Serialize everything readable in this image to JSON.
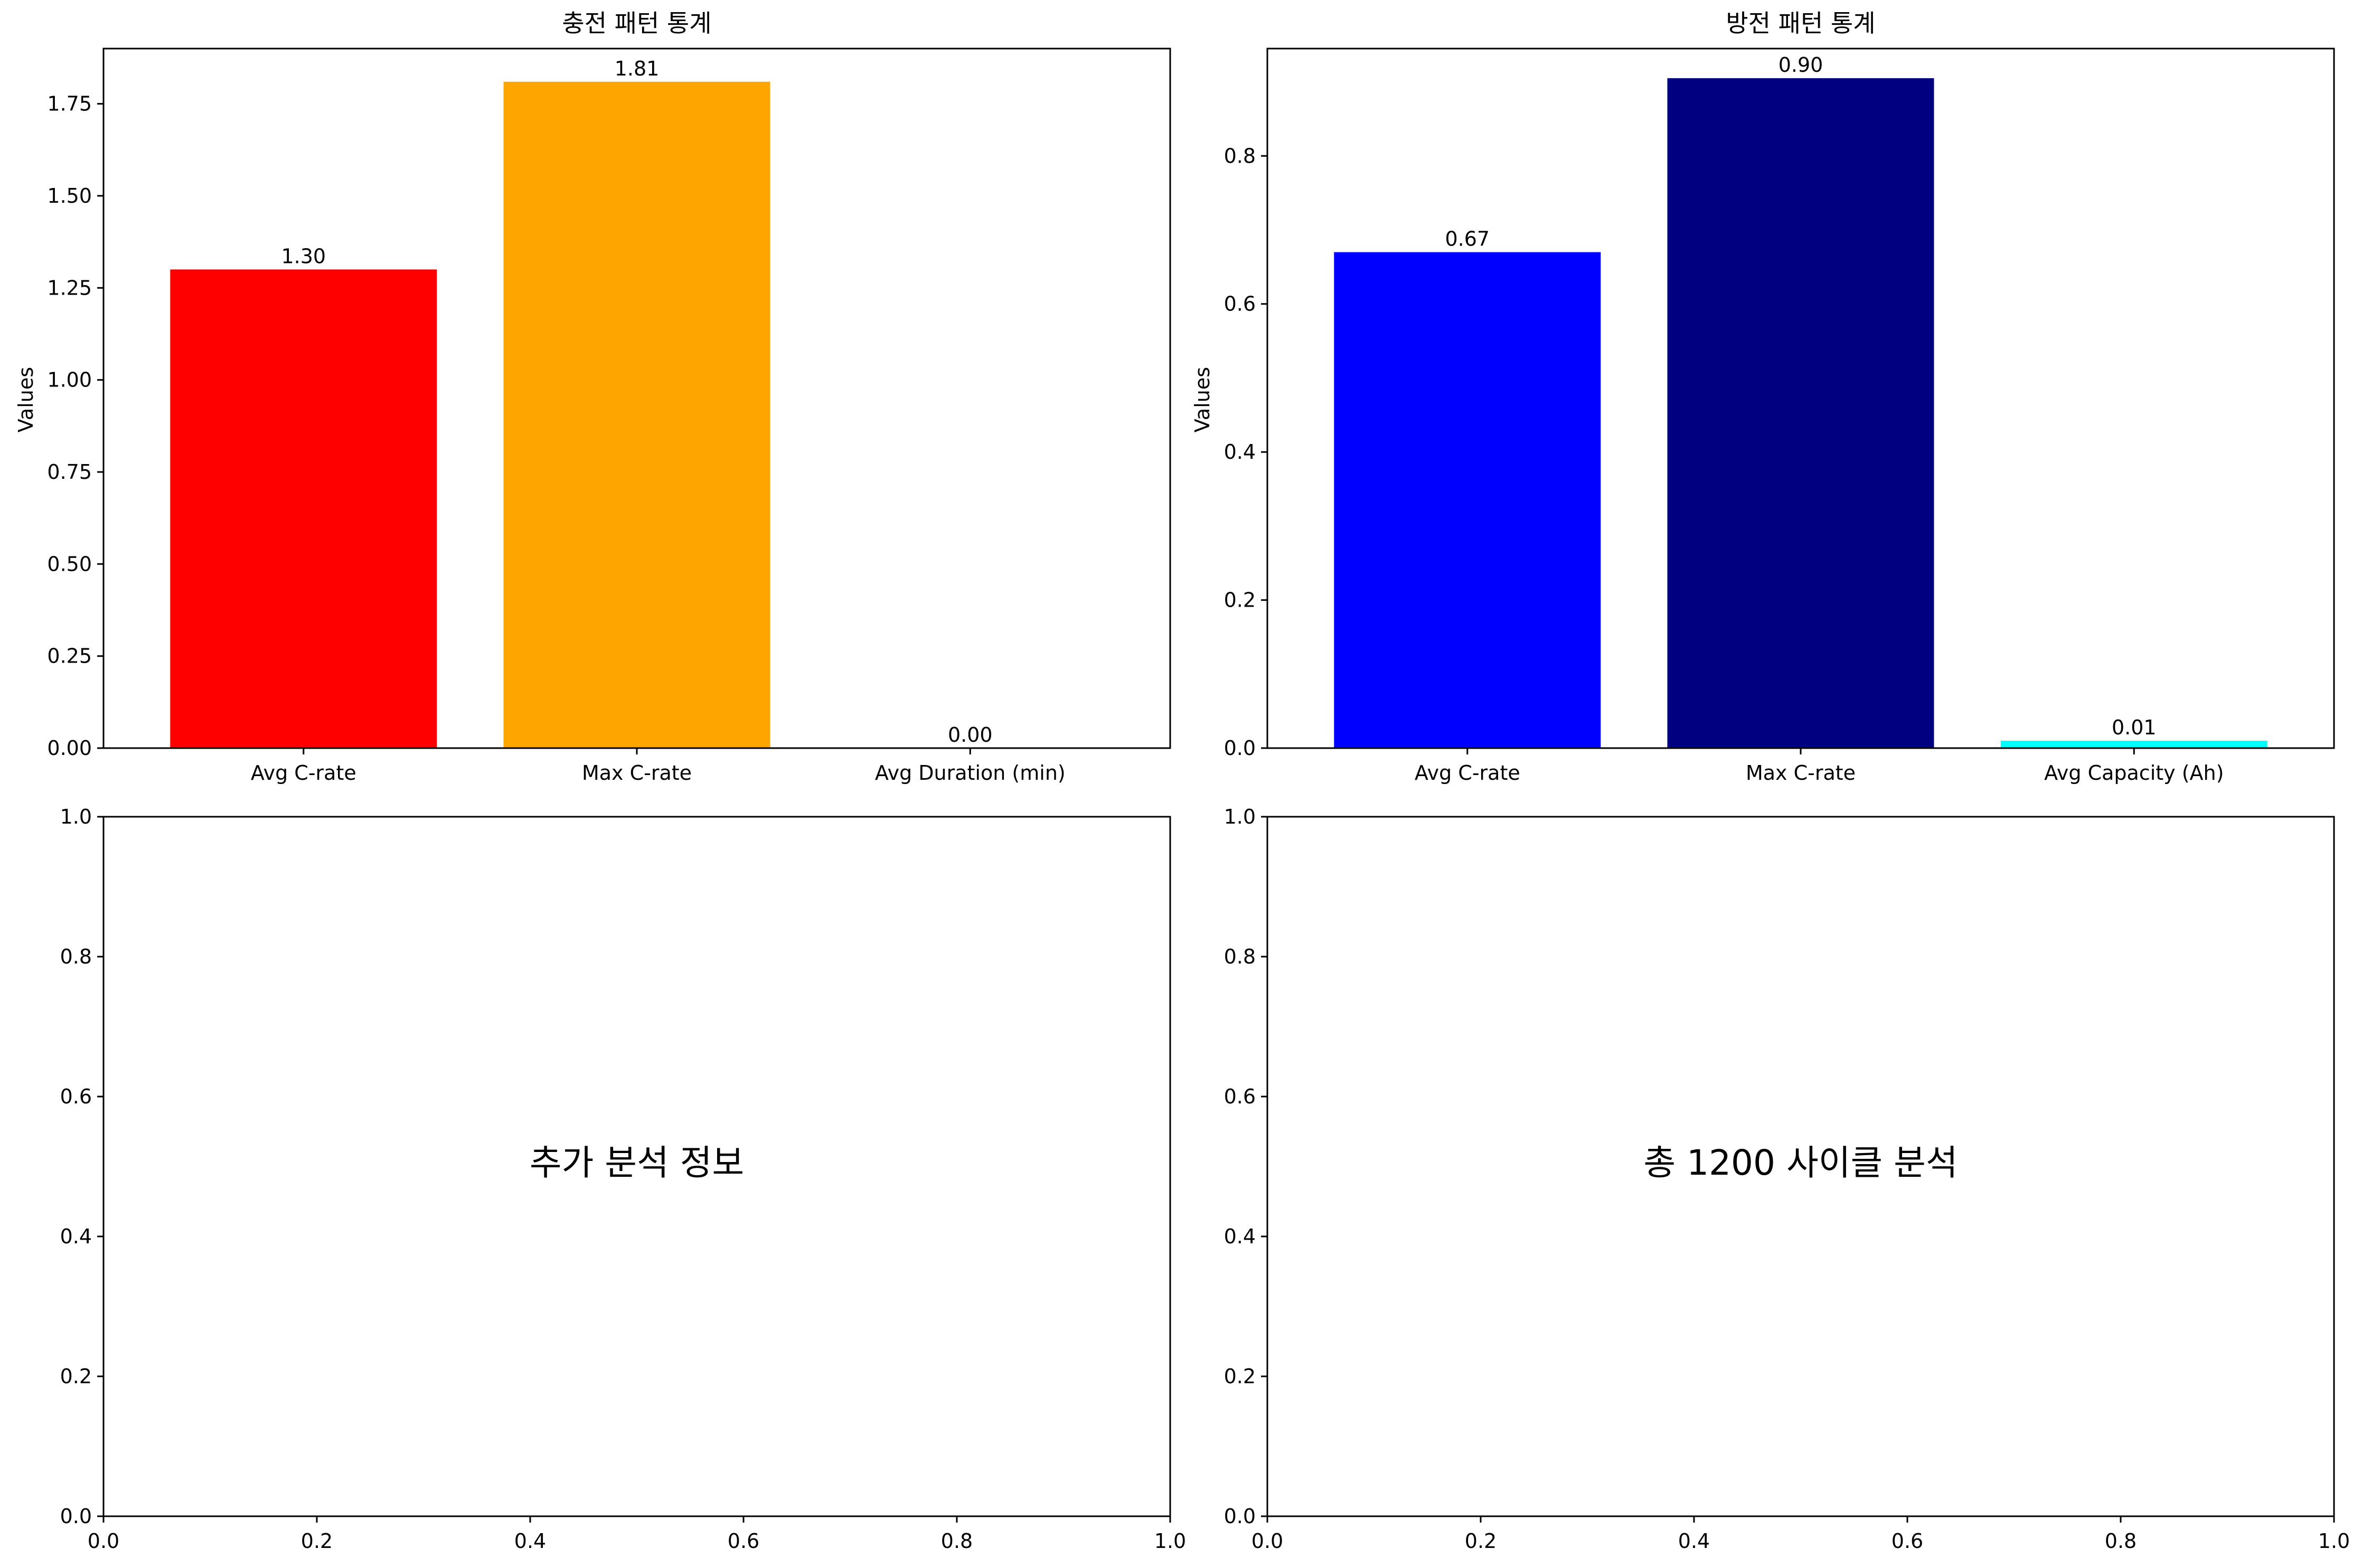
{
  "chart_data": [
    {
      "type": "bar",
      "title": "충전 패턴 통계",
      "xlabel": "",
      "ylabel": "Values",
      "categories": [
        "Avg C-rate",
        "Max C-rate",
        "Avg Duration (min)"
      ],
      "values": [
        1.3,
        1.81,
        0.0
      ],
      "data_labels": [
        "1.30",
        "1.81",
        "0.00"
      ],
      "colors": [
        "#ff0000",
        "#ffa500",
        "#ff00ff"
      ],
      "ylim": [
        0,
        1.9
      ],
      "yticks": [
        0.0,
        0.25,
        0.5,
        0.75,
        1.0,
        1.25,
        1.5,
        1.75
      ],
      "ytick_labels": [
        "0.00",
        "0.25",
        "0.50",
        "0.75",
        "1.00",
        "1.25",
        "1.50",
        "1.75"
      ]
    },
    {
      "type": "bar",
      "title": "방전 패턴 통계",
      "xlabel": "",
      "ylabel": "Values",
      "categories": [
        "Avg C-rate",
        "Max C-rate",
        "Avg Capacity (Ah)"
      ],
      "values": [
        0.67,
        0.905,
        0.01
      ],
      "data_labels": [
        "0.67",
        "0.90",
        "0.01"
      ],
      "colors": [
        "#0000ff",
        "#000080",
        "#00ffff"
      ],
      "ylim": [
        0,
        0.945
      ],
      "yticks": [
        0.0,
        0.2,
        0.4,
        0.6,
        0.8
      ],
      "ytick_labels": [
        "0.0",
        "0.2",
        "0.4",
        "0.6",
        "0.8"
      ]
    },
    {
      "type": "text",
      "text": "추가 분석 정보",
      "xlim": [
        0,
        1
      ],
      "ylim": [
        0,
        1
      ],
      "xticks": [
        0.0,
        0.2,
        0.4,
        0.6,
        0.8,
        1.0
      ],
      "xtick_labels": [
        "0.0",
        "0.2",
        "0.4",
        "0.6",
        "0.8",
        "1.0"
      ],
      "yticks": [
        0.0,
        0.2,
        0.4,
        0.6,
        0.8,
        1.0
      ],
      "ytick_labels": [
        "0.0",
        "0.2",
        "0.4",
        "0.6",
        "0.8",
        "1.0"
      ]
    },
    {
      "type": "text",
      "text": "총 1200 사이클 분석",
      "xlim": [
        0,
        1
      ],
      "ylim": [
        0,
        1
      ],
      "xticks": [
        0.0,
        0.2,
        0.4,
        0.6,
        0.8,
        1.0
      ],
      "xtick_labels": [
        "0.0",
        "0.2",
        "0.4",
        "0.6",
        "0.8",
        "1.0"
      ],
      "yticks": [
        0.0,
        0.2,
        0.4,
        0.6,
        0.8,
        1.0
      ],
      "ytick_labels": [
        "0.0",
        "0.2",
        "0.4",
        "0.6",
        "0.8",
        "1.0"
      ]
    }
  ]
}
